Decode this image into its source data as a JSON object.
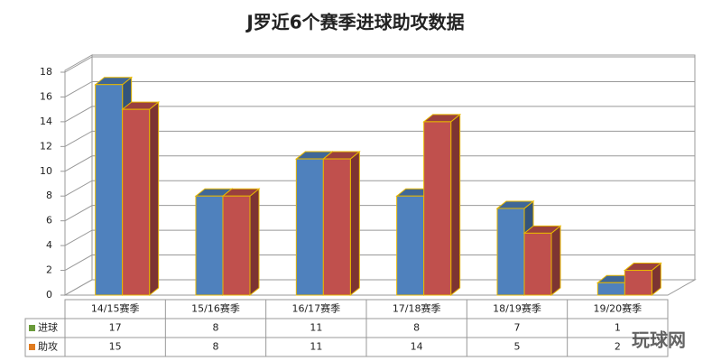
{
  "chart_data": {
    "type": "bar3d",
    "title": "J罗近6个赛季进球助攻数据",
    "categories": [
      "14/15赛季",
      "15/16赛季",
      "16/17赛季",
      "17/18赛季",
      "18/19赛季",
      "19/20赛季"
    ],
    "series": [
      {
        "name": "进球",
        "color": "#4f81bd",
        "values": [
          17,
          8,
          11,
          8,
          7,
          1
        ]
      },
      {
        "name": "助攻",
        "color": "#c0504d",
        "values": [
          15,
          8,
          11,
          14,
          5,
          2
        ]
      }
    ],
    "ylim": [
      0,
      18
    ],
    "yticks": [
      0,
      2,
      4,
      6,
      8,
      10,
      12,
      14,
      16,
      18
    ],
    "grid": true,
    "watermark": "玩球网"
  }
}
